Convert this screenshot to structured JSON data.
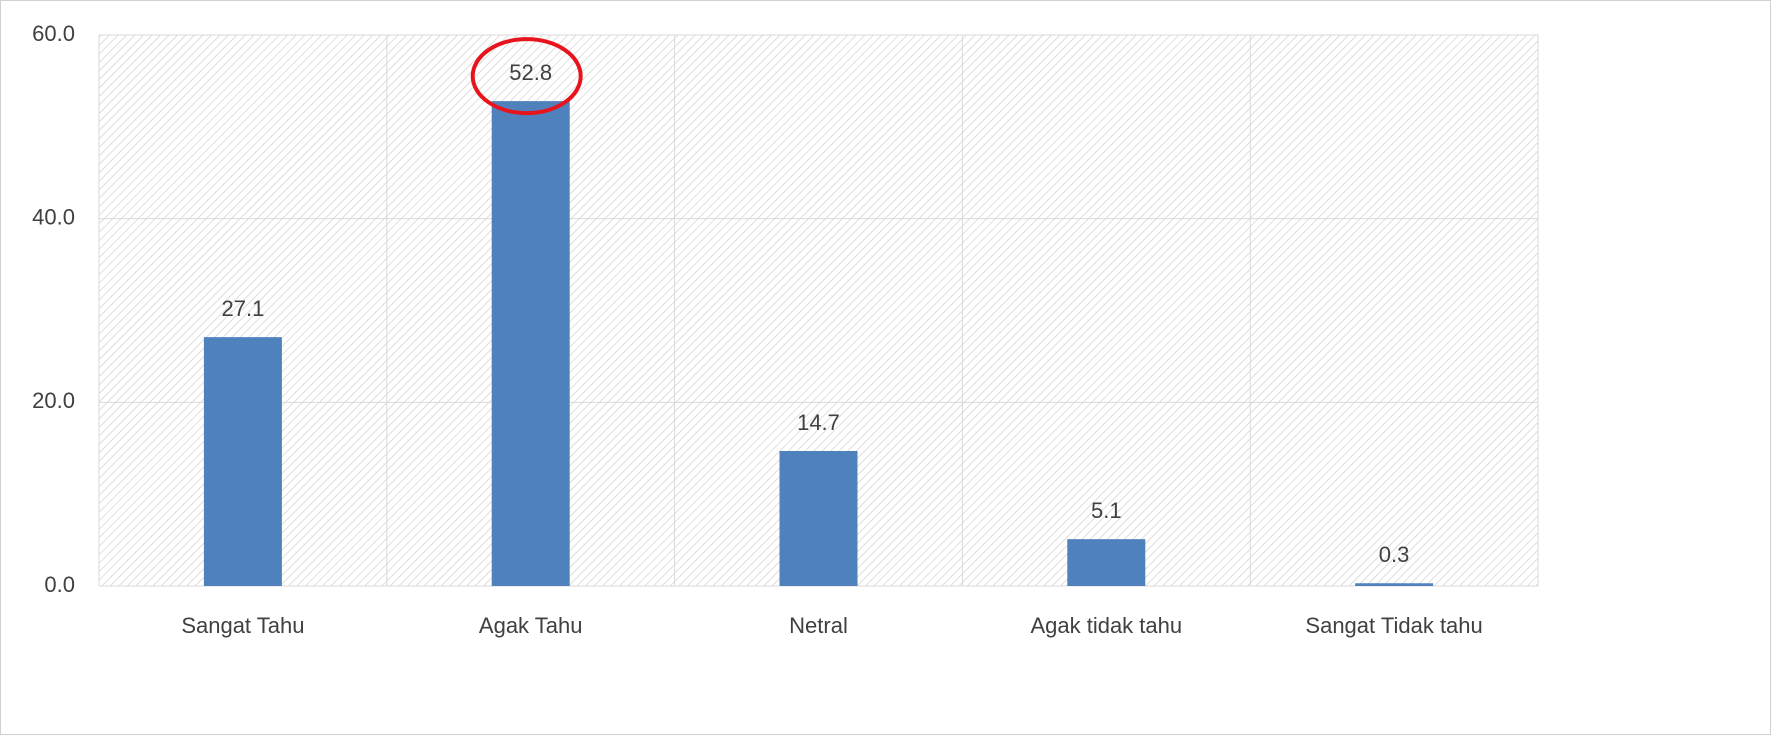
{
  "chart_data": {
    "type": "bar",
    "categories": [
      "Sangat Tahu",
      "Agak Tahu",
      "Netral",
      "Agak tidak tahu",
      "Sangat Tidak tahu"
    ],
    "values": [
      27.1,
      52.8,
      14.7,
      5.1,
      0.3
    ],
    "color": "#4f81bd",
    "ylim": [
      0,
      60
    ],
    "yticks": [
      {
        "value": 0,
        "label": "0.0"
      },
      {
        "value": 20,
        "label": "20.0"
      },
      {
        "value": 40,
        "label": "40.0"
      },
      {
        "value": 60,
        "label": "60.0"
      }
    ],
    "grid": true
  }
}
